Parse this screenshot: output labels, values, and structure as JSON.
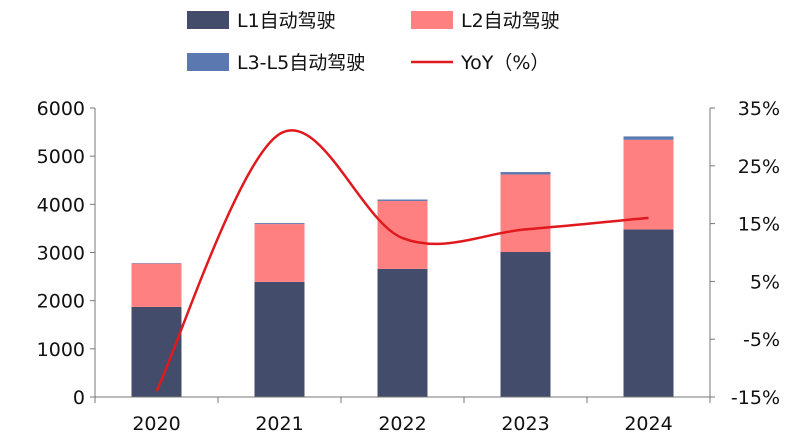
{
  "chart_data": {
    "type": "bar",
    "stacked": true,
    "categories": [
      "2020",
      "2021",
      "2022",
      "2023",
      "2024"
    ],
    "series": [
      {
        "name": "L1自动驾驶",
        "values": [
          1870,
          2390,
          2660,
          3010,
          3480
        ],
        "color": "#434d6b",
        "axis": "left"
      },
      {
        "name": "L2自动驾驶",
        "values": [
          900,
          1200,
          1410,
          1610,
          1860
        ],
        "color": "#ff8080",
        "axis": "left"
      },
      {
        "name": "L3-L5自动驾驶",
        "values": [
          10,
          20,
          30,
          50,
          70
        ],
        "color": "#5b78b0",
        "axis": "left"
      }
    ],
    "line": {
      "name": "YoY（%）",
      "values": [
        -14,
        30.5,
        12.5,
        14,
        16
      ],
      "color": "#e0191e",
      "axis": "right"
    },
    "y_left": {
      "min": 0,
      "max": 6000,
      "ticks": [
        0,
        1000,
        2000,
        3000,
        4000,
        5000,
        6000
      ]
    },
    "y_right": {
      "min": -15,
      "max": 35,
      "ticks": [
        "-15%",
        "-5%",
        "5%",
        "15%",
        "25%",
        "35%"
      ]
    },
    "legend": {
      "position": "top"
    }
  }
}
